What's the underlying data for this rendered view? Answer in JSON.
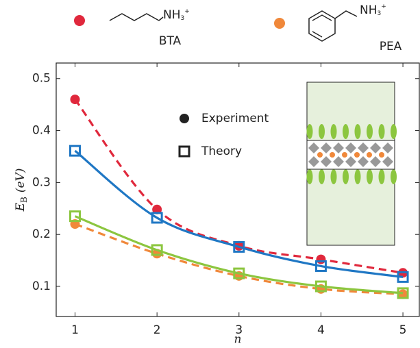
{
  "chart_data": {
    "type": "line",
    "x_label": "n",
    "y_label": {
      "symbol": "E",
      "subscript": "B",
      "unit": "(eV)"
    },
    "x": [
      1,
      2,
      3,
      4,
      5
    ],
    "xlim": [
      0.77,
      5.2
    ],
    "xticks": [
      1,
      2,
      3,
      4,
      5
    ],
    "ylim": [
      0.042,
      0.53
    ],
    "yticks": [
      0.1,
      0.2,
      0.3,
      0.4,
      0.5
    ],
    "ammonium": {
      "base": "NH",
      "sub": "3",
      "sup": "+"
    },
    "legend": [
      {
        "name": "Experiment",
        "marker": "circle"
      },
      {
        "name": "Theory",
        "marker": "square"
      }
    ],
    "compounds": [
      {
        "name": "BTA",
        "color": "#e0283c",
        "experiment": {
          "line": "dashed",
          "values": [
            0.46,
            0.248,
            0.178,
            0.152,
            0.126
          ]
        },
        "theory": {
          "line": "solid",
          "color": "#1f77c4",
          "values": [
            0.361,
            0.232,
            0.176,
            0.139,
            0.118
          ]
        }
      },
      {
        "name": "PEA",
        "color": "#f0883a",
        "experiment": {
          "line": "dashed",
          "values": [
            0.22,
            0.163,
            0.12,
            0.095,
            0.085
          ]
        },
        "theory": {
          "line": "solid",
          "color": "#8cc63f",
          "values": [
            0.235,
            0.17,
            0.125,
            0.1,
            0.087
          ]
        }
      }
    ]
  }
}
